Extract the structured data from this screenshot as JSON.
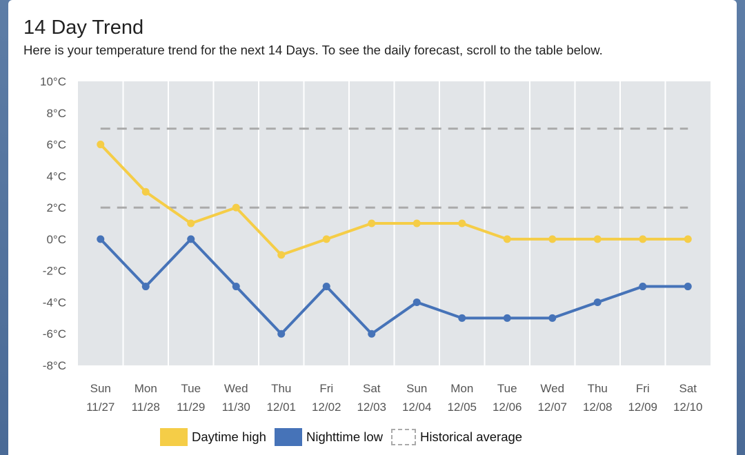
{
  "header": {
    "title": "14 Day Trend",
    "subtitle": "Here is your temperature trend for the next 14 Days. To see the daily forecast, scroll to the table below."
  },
  "legend": {
    "high": "Daytime high",
    "low": "Nighttime low",
    "avg": "Historical average"
  },
  "chart_data": {
    "type": "line",
    "title": "14 Day Trend",
    "xlabel": "",
    "ylabel": "",
    "categories": [
      "Sun 11/27",
      "Mon 11/28",
      "Tue 11/29",
      "Wed 11/30",
      "Thu 12/01",
      "Fri 12/02",
      "Sat 12/03",
      "Sun 12/04",
      "Mon 12/05",
      "Tue 12/06",
      "Wed 12/07",
      "Thu 12/08",
      "Fri 12/09",
      "Sat 12/10"
    ],
    "day_labels": [
      "Sun",
      "Mon",
      "Tue",
      "Wed",
      "Thu",
      "Fri",
      "Sat",
      "Sun",
      "Mon",
      "Tue",
      "Wed",
      "Thu",
      "Fri",
      "Sat"
    ],
    "date_labels": [
      "11/27",
      "11/28",
      "11/29",
      "11/30",
      "12/01",
      "12/02",
      "12/03",
      "12/04",
      "12/05",
      "12/06",
      "12/07",
      "12/08",
      "12/09",
      "12/10"
    ],
    "series": [
      {
        "name": "Daytime high",
        "color": "#f5cd47",
        "values": [
          6,
          3,
          1,
          2,
          -1,
          0,
          1,
          1,
          1,
          0,
          0,
          0,
          0,
          0
        ]
      },
      {
        "name": "Nighttime low",
        "color": "#4673b8",
        "values": [
          0,
          -3,
          0,
          -3,
          -6,
          -3,
          -6,
          -4,
          -5,
          -5,
          -5,
          -4,
          -3,
          -3
        ]
      }
    ],
    "historical_average": {
      "name": "Historical average",
      "color": "#aaaaaa",
      "high": 7,
      "low": 2
    },
    "ylim": [
      -8,
      10
    ],
    "y_ticks": [
      10,
      8,
      6,
      4,
      2,
      0,
      -2,
      -4,
      -6,
      -8
    ],
    "y_unit": "°C",
    "grid": true,
    "legend_position": "bottom"
  }
}
